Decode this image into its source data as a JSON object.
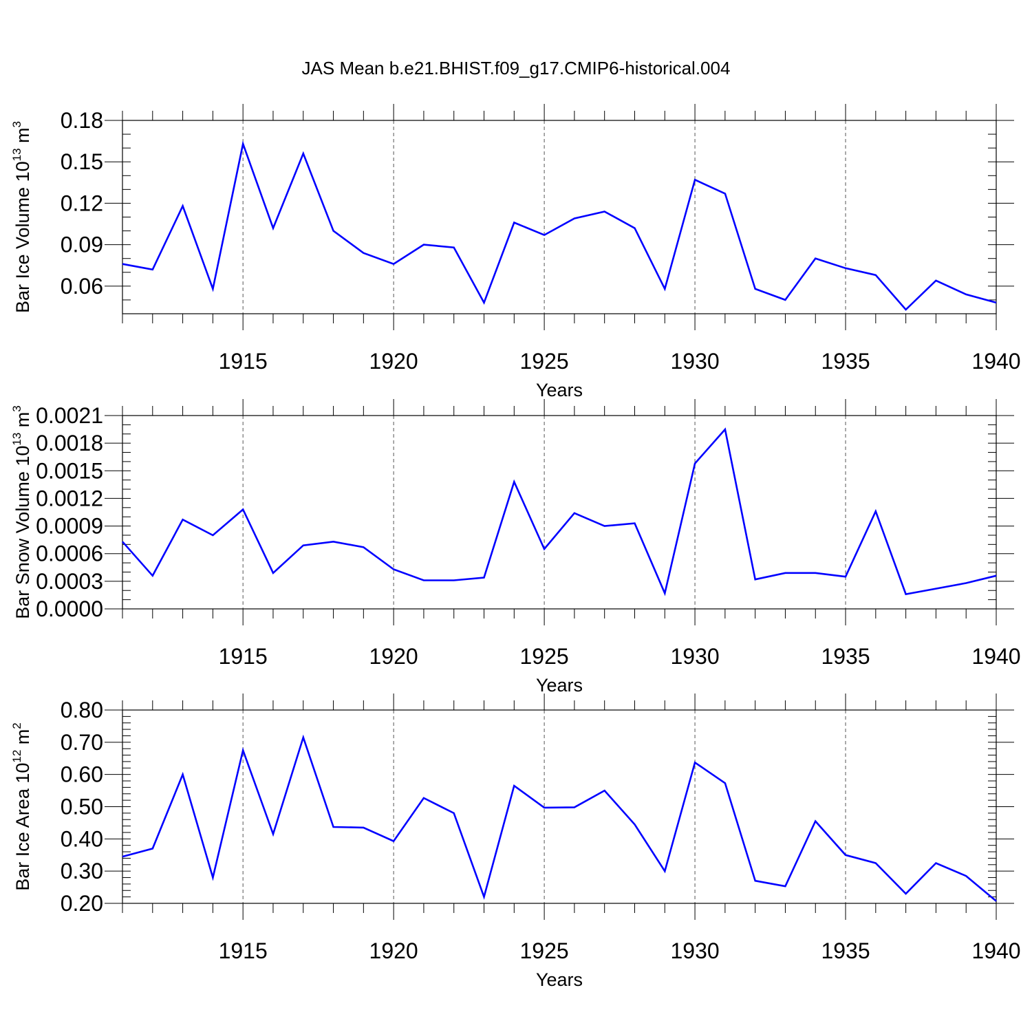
{
  "title": "JAS Mean b.e21.BHIST.f09_g17.CMIP6-historical.004",
  "line_color": "#0000ff",
  "chart_data": [
    {
      "type": "line",
      "ylabel": "Bar Ice Volume 10",
      "ylabel_exp": "13",
      "ylabel_unit": " m",
      "ylabel_unit_exp": "3",
      "xlabel": "Years",
      "xlim": [
        1911,
        1940
      ],
      "ylim": [
        0.04,
        0.18
      ],
      "yticks": [
        0.06,
        0.09,
        0.12,
        0.15,
        0.18
      ],
      "ytick_labels": [
        "0.06",
        "0.09",
        "0.12",
        "0.15",
        "0.18"
      ],
      "yminor_step": 0.01,
      "xticks": [
        1915,
        1920,
        1925,
        1930,
        1935,
        1940
      ],
      "xtick_labels": [
        "1915",
        "1920",
        "1925",
        "1930",
        "1935",
        "1940"
      ],
      "x": [
        1911,
        1912,
        1913,
        1914,
        1915,
        1916,
        1917,
        1918,
        1919,
        1920,
        1921,
        1922,
        1923,
        1924,
        1925,
        1926,
        1927,
        1928,
        1929,
        1930,
        1931,
        1932,
        1933,
        1934,
        1935,
        1936,
        1937,
        1938,
        1939,
        1940
      ],
      "values": [
        0.076,
        0.072,
        0.118,
        0.058,
        0.163,
        0.102,
        0.156,
        0.1,
        0.084,
        0.076,
        0.09,
        0.088,
        0.048,
        0.106,
        0.097,
        0.109,
        0.114,
        0.102,
        0.058,
        0.137,
        0.127,
        0.058,
        0.05,
        0.08,
        0.073,
        0.068,
        0.043,
        0.064,
        0.054,
        0.048
      ]
    },
    {
      "type": "line",
      "ylabel": "Bar Snow Volume 10",
      "ylabel_exp": "13",
      "ylabel_unit": " m",
      "ylabel_unit_exp": "3",
      "xlabel": "Years",
      "xlim": [
        1911,
        1940
      ],
      "ylim": [
        0.0,
        0.0021
      ],
      "yticks": [
        0.0,
        0.0003,
        0.0006,
        0.0009,
        0.0012,
        0.0015,
        0.0018,
        0.0021
      ],
      "ytick_labels": [
        "0.0000",
        "0.0003",
        "0.0006",
        "0.0009",
        "0.0012",
        "0.0015",
        "0.0018",
        "0.0021"
      ],
      "yminor_step": 0.0001,
      "xticks": [
        1915,
        1920,
        1925,
        1930,
        1935,
        1940
      ],
      "xtick_labels": [
        "1915",
        "1920",
        "1925",
        "1930",
        "1935",
        "1940"
      ],
      "x": [
        1911,
        1912,
        1913,
        1914,
        1915,
        1916,
        1917,
        1918,
        1919,
        1920,
        1921,
        1922,
        1923,
        1924,
        1925,
        1926,
        1927,
        1928,
        1929,
        1930,
        1931,
        1932,
        1933,
        1934,
        1935,
        1936,
        1937,
        1938,
        1939,
        1940
      ],
      "values": [
        0.00073,
        0.00036,
        0.00097,
        0.0008,
        0.00108,
        0.00039,
        0.00069,
        0.00073,
        0.00067,
        0.00043,
        0.00031,
        0.00031,
        0.00034,
        0.00138,
        0.00065,
        0.00104,
        0.0009,
        0.00093,
        0.00017,
        0.00158,
        0.00195,
        0.00032,
        0.00039,
        0.00039,
        0.00035,
        0.00106,
        0.00016,
        0.00022,
        0.00028,
        0.00036
      ]
    },
    {
      "type": "line",
      "ylabel": "Bar Ice Area 10",
      "ylabel_exp": "12",
      "ylabel_unit": " m",
      "ylabel_unit_exp": "2",
      "xlabel": "Years",
      "xlim": [
        1911,
        1940
      ],
      "ylim": [
        0.2,
        0.8
      ],
      "yticks": [
        0.2,
        0.3,
        0.4,
        0.5,
        0.6,
        0.7,
        0.8
      ],
      "ytick_labels": [
        "0.20",
        "0.30",
        "0.40",
        "0.50",
        "0.60",
        "0.70",
        "0.80"
      ],
      "yminor_step": 0.02,
      "xticks": [
        1915,
        1920,
        1925,
        1930,
        1935,
        1940
      ],
      "xtick_labels": [
        "1915",
        "1920",
        "1925",
        "1930",
        "1935",
        "1940"
      ],
      "x": [
        1911,
        1912,
        1913,
        1914,
        1915,
        1916,
        1917,
        1918,
        1919,
        1920,
        1921,
        1922,
        1923,
        1924,
        1925,
        1926,
        1927,
        1928,
        1929,
        1930,
        1931,
        1932,
        1933,
        1934,
        1935,
        1936,
        1937,
        1938,
        1939,
        1940
      ],
      "values": [
        0.345,
        0.37,
        0.6,
        0.28,
        0.675,
        0.415,
        0.715,
        0.437,
        0.435,
        0.393,
        0.527,
        0.48,
        0.22,
        0.565,
        0.497,
        0.498,
        0.55,
        0.445,
        0.3,
        0.637,
        0.573,
        0.27,
        0.253,
        0.455,
        0.35,
        0.325,
        0.23,
        0.325,
        0.285,
        0.207
      ]
    }
  ]
}
